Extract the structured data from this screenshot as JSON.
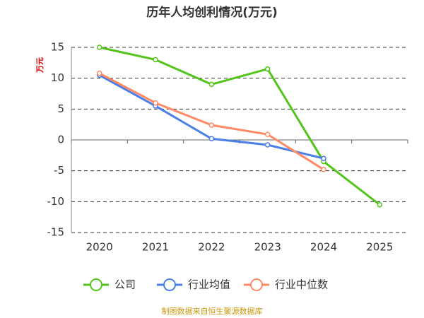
{
  "chart_data": {
    "type": "line",
    "title": "历年人均创利情况(万元)",
    "y_label": "万元",
    "categories": [
      "2020",
      "2021",
      "2022",
      "2023",
      "2024",
      "2025"
    ],
    "series": [
      {
        "name": "公司",
        "color": "#52c41a",
        "values": [
          15,
          13,
          9,
          11.5,
          -3.5,
          -10.5
        ]
      },
      {
        "name": "行业均值",
        "color": "#4a7ee8",
        "values": [
          10.5,
          5.5,
          0.2,
          -0.8,
          -3,
          null
        ]
      },
      {
        "name": "行业中位数",
        "color": "#ff8a65",
        "values": [
          10.8,
          6,
          2.4,
          0.9,
          -4.8,
          null
        ]
      }
    ],
    "ylim": [
      -15,
      15
    ],
    "yticks": [
      15,
      10,
      5,
      0,
      -5,
      -10,
      -15
    ],
    "grid": true,
    "source": "制图数据来自恒生聚源数据库"
  }
}
